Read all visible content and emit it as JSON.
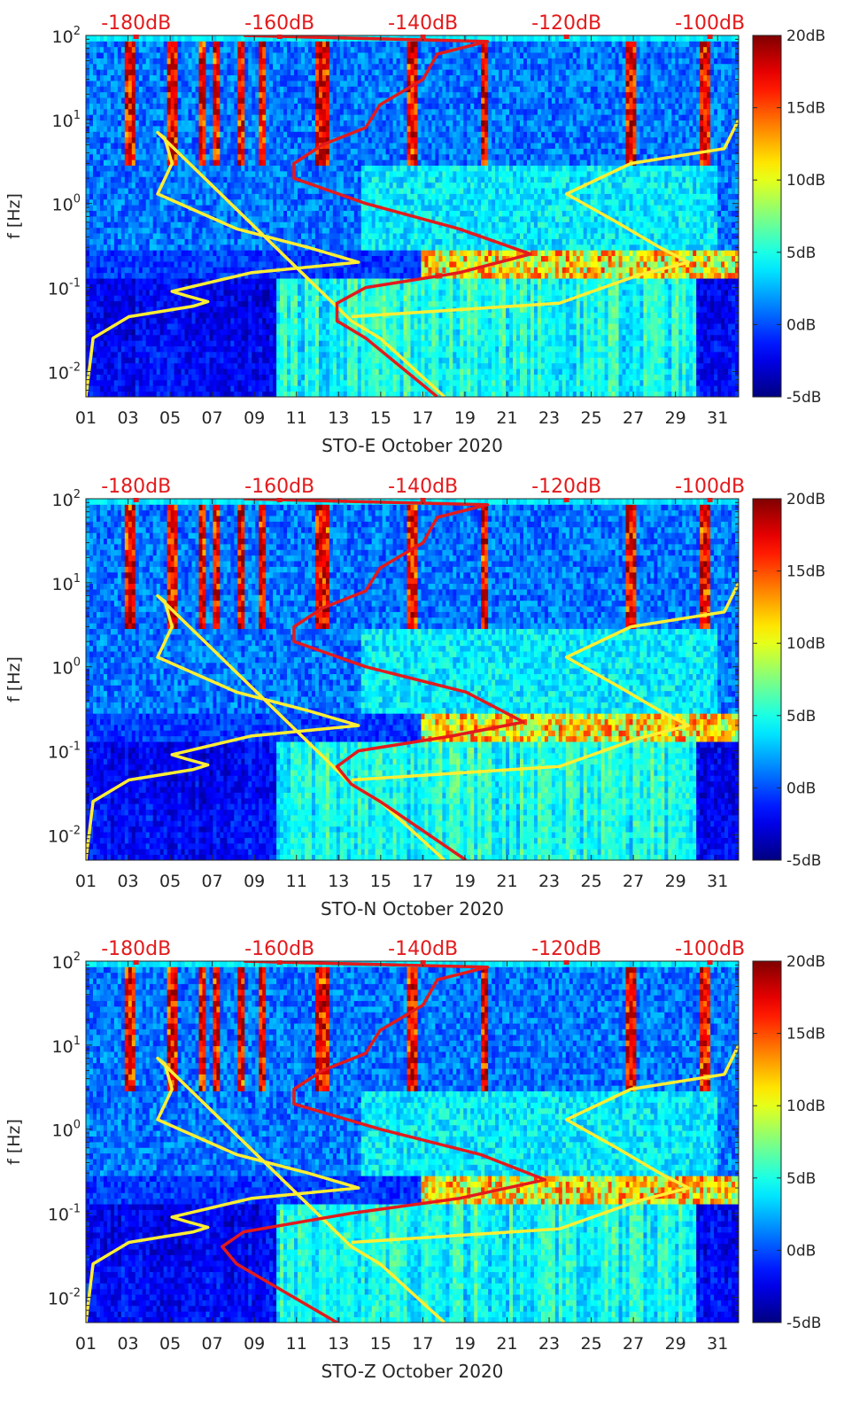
{
  "chart_data": [
    {
      "type": "heatmap",
      "station": "STO-E",
      "xlabel": "STO-E October 2020",
      "ylabel": "f [Hz]",
      "x_tick_labels": [
        "01",
        "03",
        "05",
        "07",
        "09",
        "11",
        "13",
        "15",
        "17",
        "19",
        "21",
        "23",
        "25",
        "27",
        "29",
        "31"
      ],
      "x_ticks": [
        1,
        3,
        5,
        7,
        9,
        11,
        13,
        15,
        17,
        19,
        21,
        23,
        25,
        27,
        29,
        31
      ],
      "xlim": [
        1,
        32
      ],
      "y_scale": "log",
      "ylim": [
        0.005,
        100
      ],
      "y_ticks": [
        0.01,
        0.1,
        1,
        10,
        100
      ],
      "y_tick_labels": [
        {
          "base": "10",
          "exp": "-2"
        },
        {
          "base": "10",
          "exp": "-1"
        },
        {
          "base": "10",
          "exp": "0"
        },
        {
          "base": "10",
          "exp": "1"
        },
        {
          "base": "10",
          "exp": "2"
        }
      ],
      "top_axis_labels": [
        "-180dB",
        "-160dB",
        "-140dB",
        "-120dB",
        "-100dB"
      ],
      "top_axis_values": [
        -180,
        -160,
        -140,
        -120,
        -100
      ],
      "top_axis_range": [
        -187,
        -96
      ],
      "colorbar": {
        "range": [
          -5,
          20
        ],
        "tick_values": [
          20,
          15,
          10,
          5,
          0,
          -5
        ],
        "tick_labels": [
          "20dB",
          "15dB",
          "10dB",
          "5dB",
          "0dB",
          "-5dB"
        ],
        "colormap": "jet"
      },
      "lines": [
        {
          "color": "#ffee33",
          "points": [
            [
              -187,
              0.005
            ],
            [
              -186,
              0.025
            ],
            [
              -181,
              0.045
            ],
            [
              -172,
              0.06
            ],
            [
              -170,
              0.068
            ],
            [
              -173,
              0.08
            ],
            [
              -175,
              0.09
            ],
            [
              -164,
              0.15
            ],
            [
              -149,
              0.2
            ],
            [
              -156,
              0.3
            ],
            [
              -166,
              0.5
            ],
            [
              -177,
              1.3
            ],
            [
              -175,
              3
            ],
            [
              -176,
              6
            ],
            [
              -177,
              7
            ],
            [
              -150,
              0.04
            ],
            [
              -146,
              0.025
            ],
            [
              -137,
              0.005
            ]
          ]
        },
        {
          "color": "#ffee33",
          "points": [
            [
              -150,
              0.045
            ],
            [
              -121,
              0.065
            ],
            [
              -110,
              0.14
            ],
            [
              -103,
              0.2
            ],
            [
              -107,
              0.3
            ],
            [
              -113,
              0.6
            ],
            [
              -120,
              1.3
            ],
            [
              -111,
              3
            ],
            [
              -98,
              4.5
            ],
            [
              -96,
              10
            ]
          ]
        },
        {
          "color": "#e31a1c",
          "points": [
            [
              -138,
              0.005
            ],
            [
              -148,
              0.025
            ],
            [
              -152,
              0.04
            ],
            [
              -152,
              0.065
            ],
            [
              -148,
              0.1
            ],
            [
              -135,
              0.15
            ],
            [
              -125,
              0.25
            ],
            [
              -135,
              0.5
            ],
            [
              -148,
              1
            ],
            [
              -158,
              2
            ],
            [
              -158,
              3
            ],
            [
              -154,
              5
            ],
            [
              -148,
              8
            ],
            [
              -146,
              15
            ],
            [
              -140,
              30
            ],
            [
              -138,
              60
            ],
            [
              -131,
              85
            ],
            [
              -155,
              95
            ],
            [
              -165,
              100
            ]
          ]
        }
      ]
    },
    {
      "type": "heatmap",
      "station": "STO-N",
      "xlabel": "STO-N October 2020",
      "ylabel": "f [Hz]",
      "x_tick_labels": [
        "01",
        "03",
        "05",
        "07",
        "09",
        "11",
        "13",
        "15",
        "17",
        "19",
        "21",
        "23",
        "25",
        "27",
        "29",
        "31"
      ],
      "x_ticks": [
        1,
        3,
        5,
        7,
        9,
        11,
        13,
        15,
        17,
        19,
        21,
        23,
        25,
        27,
        29,
        31
      ],
      "xlim": [
        1,
        32
      ],
      "y_scale": "log",
      "ylim": [
        0.005,
        100
      ],
      "y_ticks": [
        0.01,
        0.1,
        1,
        10,
        100
      ],
      "y_tick_labels": [
        {
          "base": "10",
          "exp": "-2"
        },
        {
          "base": "10",
          "exp": "-1"
        },
        {
          "base": "10",
          "exp": "0"
        },
        {
          "base": "10",
          "exp": "1"
        },
        {
          "base": "10",
          "exp": "2"
        }
      ],
      "top_axis_labels": [
        "-180dB",
        "-160dB",
        "-140dB",
        "-120dB",
        "-100dB"
      ],
      "top_axis_values": [
        -180,
        -160,
        -140,
        -120,
        -100
      ],
      "top_axis_range": [
        -187,
        -96
      ],
      "colorbar": {
        "range": [
          -5,
          20
        ],
        "tick_values": [
          20,
          15,
          10,
          5,
          0,
          -5
        ],
        "tick_labels": [
          "20dB",
          "15dB",
          "10dB",
          "5dB",
          "0dB",
          "-5dB"
        ],
        "colormap": "jet"
      },
      "lines": [
        {
          "color": "#ffee33",
          "points": [
            [
              -187,
              0.005
            ],
            [
              -186,
              0.025
            ],
            [
              -181,
              0.045
            ],
            [
              -172,
              0.06
            ],
            [
              -170,
              0.068
            ],
            [
              -173,
              0.08
            ],
            [
              -175,
              0.09
            ],
            [
              -164,
              0.15
            ],
            [
              -149,
              0.2
            ],
            [
              -156,
              0.3
            ],
            [
              -166,
              0.5
            ],
            [
              -177,
              1.3
            ],
            [
              -175,
              3
            ],
            [
              -176,
              6
            ],
            [
              -177,
              7
            ],
            [
              -150,
              0.04
            ],
            [
              -146,
              0.025
            ],
            [
              -137,
              0.005
            ]
          ]
        },
        {
          "color": "#ffee33",
          "points": [
            [
              -150,
              0.045
            ],
            [
              -121,
              0.065
            ],
            [
              -110,
              0.14
            ],
            [
              -103,
              0.2
            ],
            [
              -107,
              0.3
            ],
            [
              -113,
              0.6
            ],
            [
              -120,
              1.3
            ],
            [
              -111,
              3
            ],
            [
              -98,
              4.5
            ],
            [
              -96,
              10
            ]
          ]
        },
        {
          "color": "#e31a1c",
          "points": [
            [
              -134,
              0.005
            ],
            [
              -146,
              0.025
            ],
            [
              -150,
              0.04
            ],
            [
              -152,
              0.065
            ],
            [
              -149,
              0.1
            ],
            [
              -136,
              0.15
            ],
            [
              -126,
              0.22
            ],
            [
              -134,
              0.5
            ],
            [
              -148,
              1
            ],
            [
              -158,
              2
            ],
            [
              -158,
              3
            ],
            [
              -154,
              5
            ],
            [
              -148,
              8
            ],
            [
              -146,
              15
            ],
            [
              -140,
              30
            ],
            [
              -138,
              60
            ],
            [
              -131,
              85
            ],
            [
              -155,
              95
            ],
            [
              -165,
              100
            ]
          ]
        }
      ]
    },
    {
      "type": "heatmap",
      "station": "STO-Z",
      "xlabel": "STO-Z October 2020",
      "ylabel": "f [Hz]",
      "x_tick_labels": [
        "01",
        "03",
        "05",
        "07",
        "09",
        "11",
        "13",
        "15",
        "17",
        "19",
        "21",
        "23",
        "25",
        "27",
        "29",
        "31"
      ],
      "x_ticks": [
        1,
        3,
        5,
        7,
        9,
        11,
        13,
        15,
        17,
        19,
        21,
        23,
        25,
        27,
        29,
        31
      ],
      "xlim": [
        1,
        32
      ],
      "y_scale": "log",
      "ylim": [
        0.005,
        100
      ],
      "y_ticks": [
        0.01,
        0.1,
        1,
        10,
        100
      ],
      "y_tick_labels": [
        {
          "base": "10",
          "exp": "-2"
        },
        {
          "base": "10",
          "exp": "-1"
        },
        {
          "base": "10",
          "exp": "0"
        },
        {
          "base": "10",
          "exp": "1"
        },
        {
          "base": "10",
          "exp": "2"
        }
      ],
      "top_axis_labels": [
        "-180dB",
        "-160dB",
        "-140dB",
        "-120dB",
        "-100dB"
      ],
      "top_axis_values": [
        -180,
        -160,
        -140,
        -120,
        -100
      ],
      "top_axis_range": [
        -187,
        -96
      ],
      "colorbar": {
        "range": [
          -5,
          20
        ],
        "tick_values": [
          20,
          15,
          10,
          5,
          0,
          -5
        ],
        "tick_labels": [
          "20dB",
          "15dB",
          "10dB",
          "5dB",
          "0dB",
          "-5dB"
        ],
        "colormap": "jet"
      },
      "lines": [
        {
          "color": "#ffee33",
          "points": [
            [
              -187,
              0.005
            ],
            [
              -186,
              0.025
            ],
            [
              -181,
              0.045
            ],
            [
              -172,
              0.06
            ],
            [
              -170,
              0.068
            ],
            [
              -173,
              0.08
            ],
            [
              -175,
              0.09
            ],
            [
              -164,
              0.15
            ],
            [
              -149,
              0.2
            ],
            [
              -156,
              0.3
            ],
            [
              -166,
              0.5
            ],
            [
              -177,
              1.3
            ],
            [
              -175,
              3
            ],
            [
              -176,
              6
            ],
            [
              -177,
              7
            ],
            [
              -150,
              0.04
            ],
            [
              -146,
              0.025
            ],
            [
              -137,
              0.005
            ]
          ]
        },
        {
          "color": "#ffee33",
          "points": [
            [
              -150,
              0.045
            ],
            [
              -121,
              0.065
            ],
            [
              -110,
              0.14
            ],
            [
              -103,
              0.2
            ],
            [
              -107,
              0.3
            ],
            [
              -113,
              0.6
            ],
            [
              -120,
              1.3
            ],
            [
              -111,
              3
            ],
            [
              -98,
              4.5
            ],
            [
              -96,
              10
            ]
          ]
        },
        {
          "color": "#e31a1c",
          "points": [
            [
              -152,
              0.005
            ],
            [
              -166,
              0.025
            ],
            [
              -168,
              0.04
            ],
            [
              -165,
              0.06
            ],
            [
              -150,
              0.1
            ],
            [
              -135,
              0.15
            ],
            [
              -123,
              0.25
            ],
            [
              -132,
              0.5
            ],
            [
              -146,
              1
            ],
            [
              -158,
              2
            ],
            [
              -158,
              3
            ],
            [
              -154,
              5
            ],
            [
              -148,
              8
            ],
            [
              -146,
              15
            ],
            [
              -140,
              30
            ],
            [
              -138,
              60
            ],
            [
              -131,
              85
            ],
            [
              -155,
              95
            ],
            [
              -165,
              100
            ]
          ]
        }
      ]
    }
  ]
}
